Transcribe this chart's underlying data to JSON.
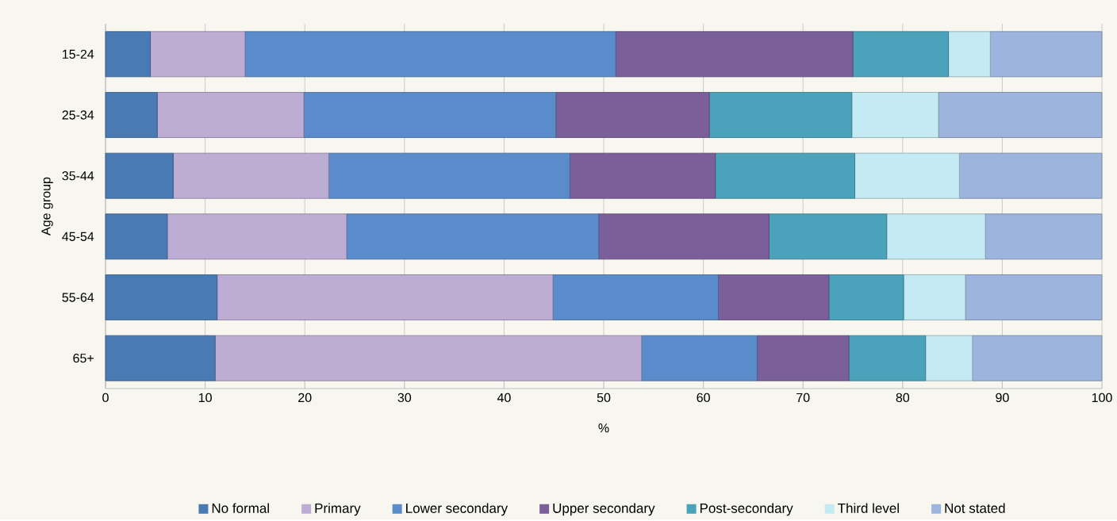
{
  "chart_data": {
    "type": "bar",
    "orientation": "horizontal",
    "stacked": true,
    "xlabel": "%",
    "ylabel": "Age group",
    "categories": [
      "15-24",
      "25-34",
      "35-44",
      "45-54",
      "55-64",
      "65+"
    ],
    "series": [
      {
        "name": "No formal",
        "color": "#4a7ab3",
        "values": [
          4.5,
          5.2,
          6.8,
          6.2,
          11.2,
          11.0
        ]
      },
      {
        "name": "Primary",
        "color": "#bdadd4",
        "values": [
          9.5,
          14.7,
          15.6,
          18.0,
          33.7,
          42.8
        ]
      },
      {
        "name": "Lower secondary",
        "color": "#5a8ccc",
        "values": [
          37.2,
          25.3,
          24.2,
          25.3,
          16.6,
          11.6
        ]
      },
      {
        "name": "Upper secondary",
        "color": "#7a5f9a",
        "values": [
          23.8,
          15.4,
          14.6,
          17.1,
          11.1,
          9.2
        ]
      },
      {
        "name": "Post-secondary",
        "color": "#4aa3bb",
        "values": [
          9.6,
          14.3,
          14.0,
          11.8,
          7.5,
          7.7
        ]
      },
      {
        "name": "Third level",
        "color": "#c4eaf3",
        "values": [
          4.2,
          8.7,
          10.5,
          9.9,
          6.2,
          4.7
        ]
      },
      {
        "name": "Not stated",
        "color": "#9cb4de",
        "values": [
          11.2,
          16.4,
          14.3,
          11.7,
          13.7,
          13.0
        ]
      }
    ],
    "xlim": [
      0,
      100
    ],
    "xticks": [
      0,
      10,
      20,
      30,
      40,
      50,
      60,
      70,
      80,
      90,
      100
    ],
    "grid": "x",
    "legend": "bottom"
  }
}
